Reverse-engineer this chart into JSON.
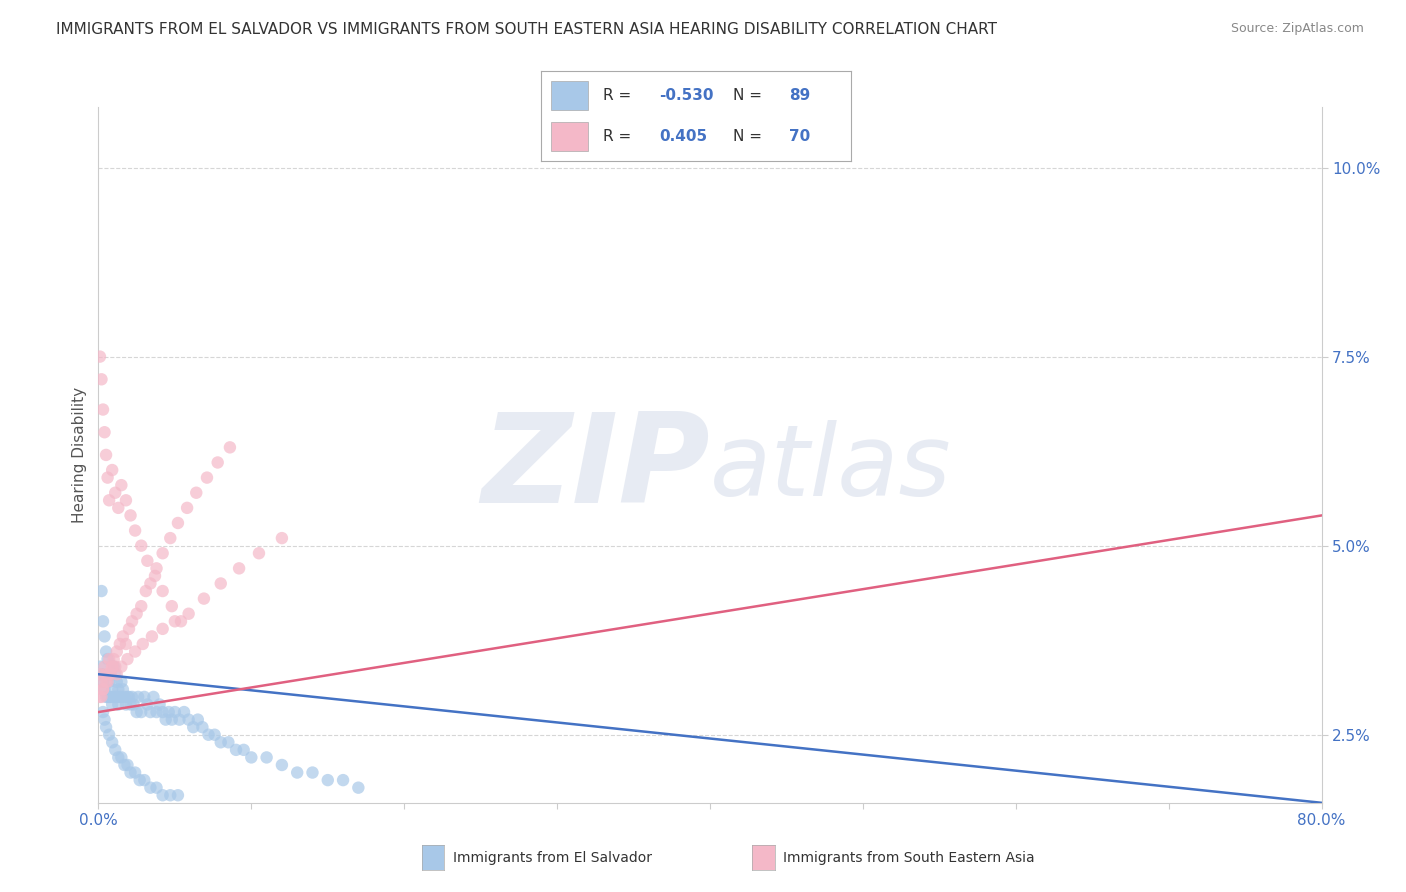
{
  "title": "IMMIGRANTS FROM EL SALVADOR VS IMMIGRANTS FROM SOUTH EASTERN ASIA HEARING DISABILITY CORRELATION CHART",
  "source": "Source: ZipAtlas.com",
  "ylabel": "Hearing Disability",
  "yticks": [
    "2.5%",
    "5.0%",
    "7.5%",
    "10.0%"
  ],
  "ytick_vals": [
    0.025,
    0.05,
    0.075,
    0.1
  ],
  "xlim": [
    0.0,
    0.8
  ],
  "ylim": [
    0.016,
    0.108
  ],
  "watermark": "ZIPatlas",
  "background_color": "#ffffff",
  "grid_color": "#cccccc",
  "series": [
    {
      "label": "Immigrants from El Salvador",
      "R": -0.53,
      "N": 89,
      "color": "#a8c8e8",
      "line_color": "#4472c4",
      "scatter_x": [
        0.001,
        0.002,
        0.002,
        0.003,
        0.003,
        0.004,
        0.004,
        0.005,
        0.005,
        0.006,
        0.006,
        0.007,
        0.007,
        0.008,
        0.008,
        0.009,
        0.009,
        0.01,
        0.01,
        0.011,
        0.011,
        0.012,
        0.012,
        0.013,
        0.013,
        0.014,
        0.015,
        0.015,
        0.016,
        0.017,
        0.018,
        0.019,
        0.02,
        0.021,
        0.022,
        0.023,
        0.025,
        0.026,
        0.028,
        0.03,
        0.032,
        0.034,
        0.036,
        0.038,
        0.04,
        0.042,
        0.044,
        0.046,
        0.048,
        0.05,
        0.053,
        0.056,
        0.059,
        0.062,
        0.065,
        0.068,
        0.072,
        0.076,
        0.08,
        0.085,
        0.09,
        0.095,
        0.1,
        0.11,
        0.12,
        0.13,
        0.14,
        0.15,
        0.16,
        0.17,
        0.003,
        0.004,
        0.005,
        0.007,
        0.009,
        0.011,
        0.013,
        0.015,
        0.017,
        0.019,
        0.021,
        0.024,
        0.027,
        0.03,
        0.034,
        0.038,
        0.042,
        0.047,
        0.052
      ],
      "scatter_y": [
        0.034,
        0.033,
        0.044,
        0.032,
        0.04,
        0.031,
        0.038,
        0.03,
        0.036,
        0.03,
        0.035,
        0.03,
        0.032,
        0.03,
        0.033,
        0.029,
        0.031,
        0.03,
        0.034,
        0.03,
        0.033,
        0.03,
        0.032,
        0.029,
        0.031,
        0.03,
        0.03,
        0.032,
        0.031,
        0.03,
        0.029,
        0.03,
        0.03,
        0.029,
        0.03,
        0.029,
        0.028,
        0.03,
        0.028,
        0.03,
        0.029,
        0.028,
        0.03,
        0.028,
        0.029,
        0.028,
        0.027,
        0.028,
        0.027,
        0.028,
        0.027,
        0.028,
        0.027,
        0.026,
        0.027,
        0.026,
        0.025,
        0.025,
        0.024,
        0.024,
        0.023,
        0.023,
        0.022,
        0.022,
        0.021,
        0.02,
        0.02,
        0.019,
        0.019,
        0.018,
        0.028,
        0.027,
        0.026,
        0.025,
        0.024,
        0.023,
        0.022,
        0.022,
        0.021,
        0.021,
        0.02,
        0.02,
        0.019,
        0.019,
        0.018,
        0.018,
        0.017,
        0.017,
        0.017
      ],
      "trend_x": [
        0.0,
        0.8
      ],
      "trend_y": [
        0.033,
        0.016
      ]
    },
    {
      "label": "Immigrants from South Eastern Asia",
      "R": 0.405,
      "N": 70,
      "color": "#f4b8c8",
      "line_color": "#e06080",
      "scatter_x": [
        0.001,
        0.002,
        0.003,
        0.004,
        0.005,
        0.006,
        0.007,
        0.008,
        0.009,
        0.01,
        0.011,
        0.012,
        0.014,
        0.016,
        0.018,
        0.02,
        0.022,
        0.025,
        0.028,
        0.031,
        0.034,
        0.038,
        0.042,
        0.047,
        0.052,
        0.058,
        0.064,
        0.071,
        0.078,
        0.086,
        0.001,
        0.002,
        0.003,
        0.004,
        0.005,
        0.006,
        0.007,
        0.009,
        0.011,
        0.013,
        0.015,
        0.018,
        0.021,
        0.024,
        0.028,
        0.032,
        0.037,
        0.042,
        0.048,
        0.054,
        0.001,
        0.002,
        0.003,
        0.005,
        0.007,
        0.009,
        0.012,
        0.015,
        0.019,
        0.024,
        0.029,
        0.035,
        0.042,
        0.05,
        0.059,
        0.069,
        0.08,
        0.092,
        0.105,
        0.12
      ],
      "scatter_y": [
        0.03,
        0.032,
        0.031,
        0.034,
        0.033,
        0.032,
        0.035,
        0.033,
        0.034,
        0.035,
        0.034,
        0.036,
        0.037,
        0.038,
        0.037,
        0.039,
        0.04,
        0.041,
        0.042,
        0.044,
        0.045,
        0.047,
        0.049,
        0.051,
        0.053,
        0.055,
        0.057,
        0.059,
        0.061,
        0.063,
        0.075,
        0.072,
        0.068,
        0.065,
        0.062,
        0.059,
        0.056,
        0.06,
        0.057,
        0.055,
        0.058,
        0.056,
        0.054,
        0.052,
        0.05,
        0.048,
        0.046,
        0.044,
        0.042,
        0.04,
        0.033,
        0.03,
        0.031,
        0.032,
        0.033,
        0.034,
        0.033,
        0.034,
        0.035,
        0.036,
        0.037,
        0.038,
        0.039,
        0.04,
        0.041,
        0.043,
        0.045,
        0.047,
        0.049,
        0.051
      ],
      "trend_x": [
        0.0,
        0.8
      ],
      "trend_y": [
        0.028,
        0.054
      ]
    }
  ],
  "legend_R": [
    -0.53,
    0.405
  ],
  "legend_N": [
    89,
    70
  ]
}
